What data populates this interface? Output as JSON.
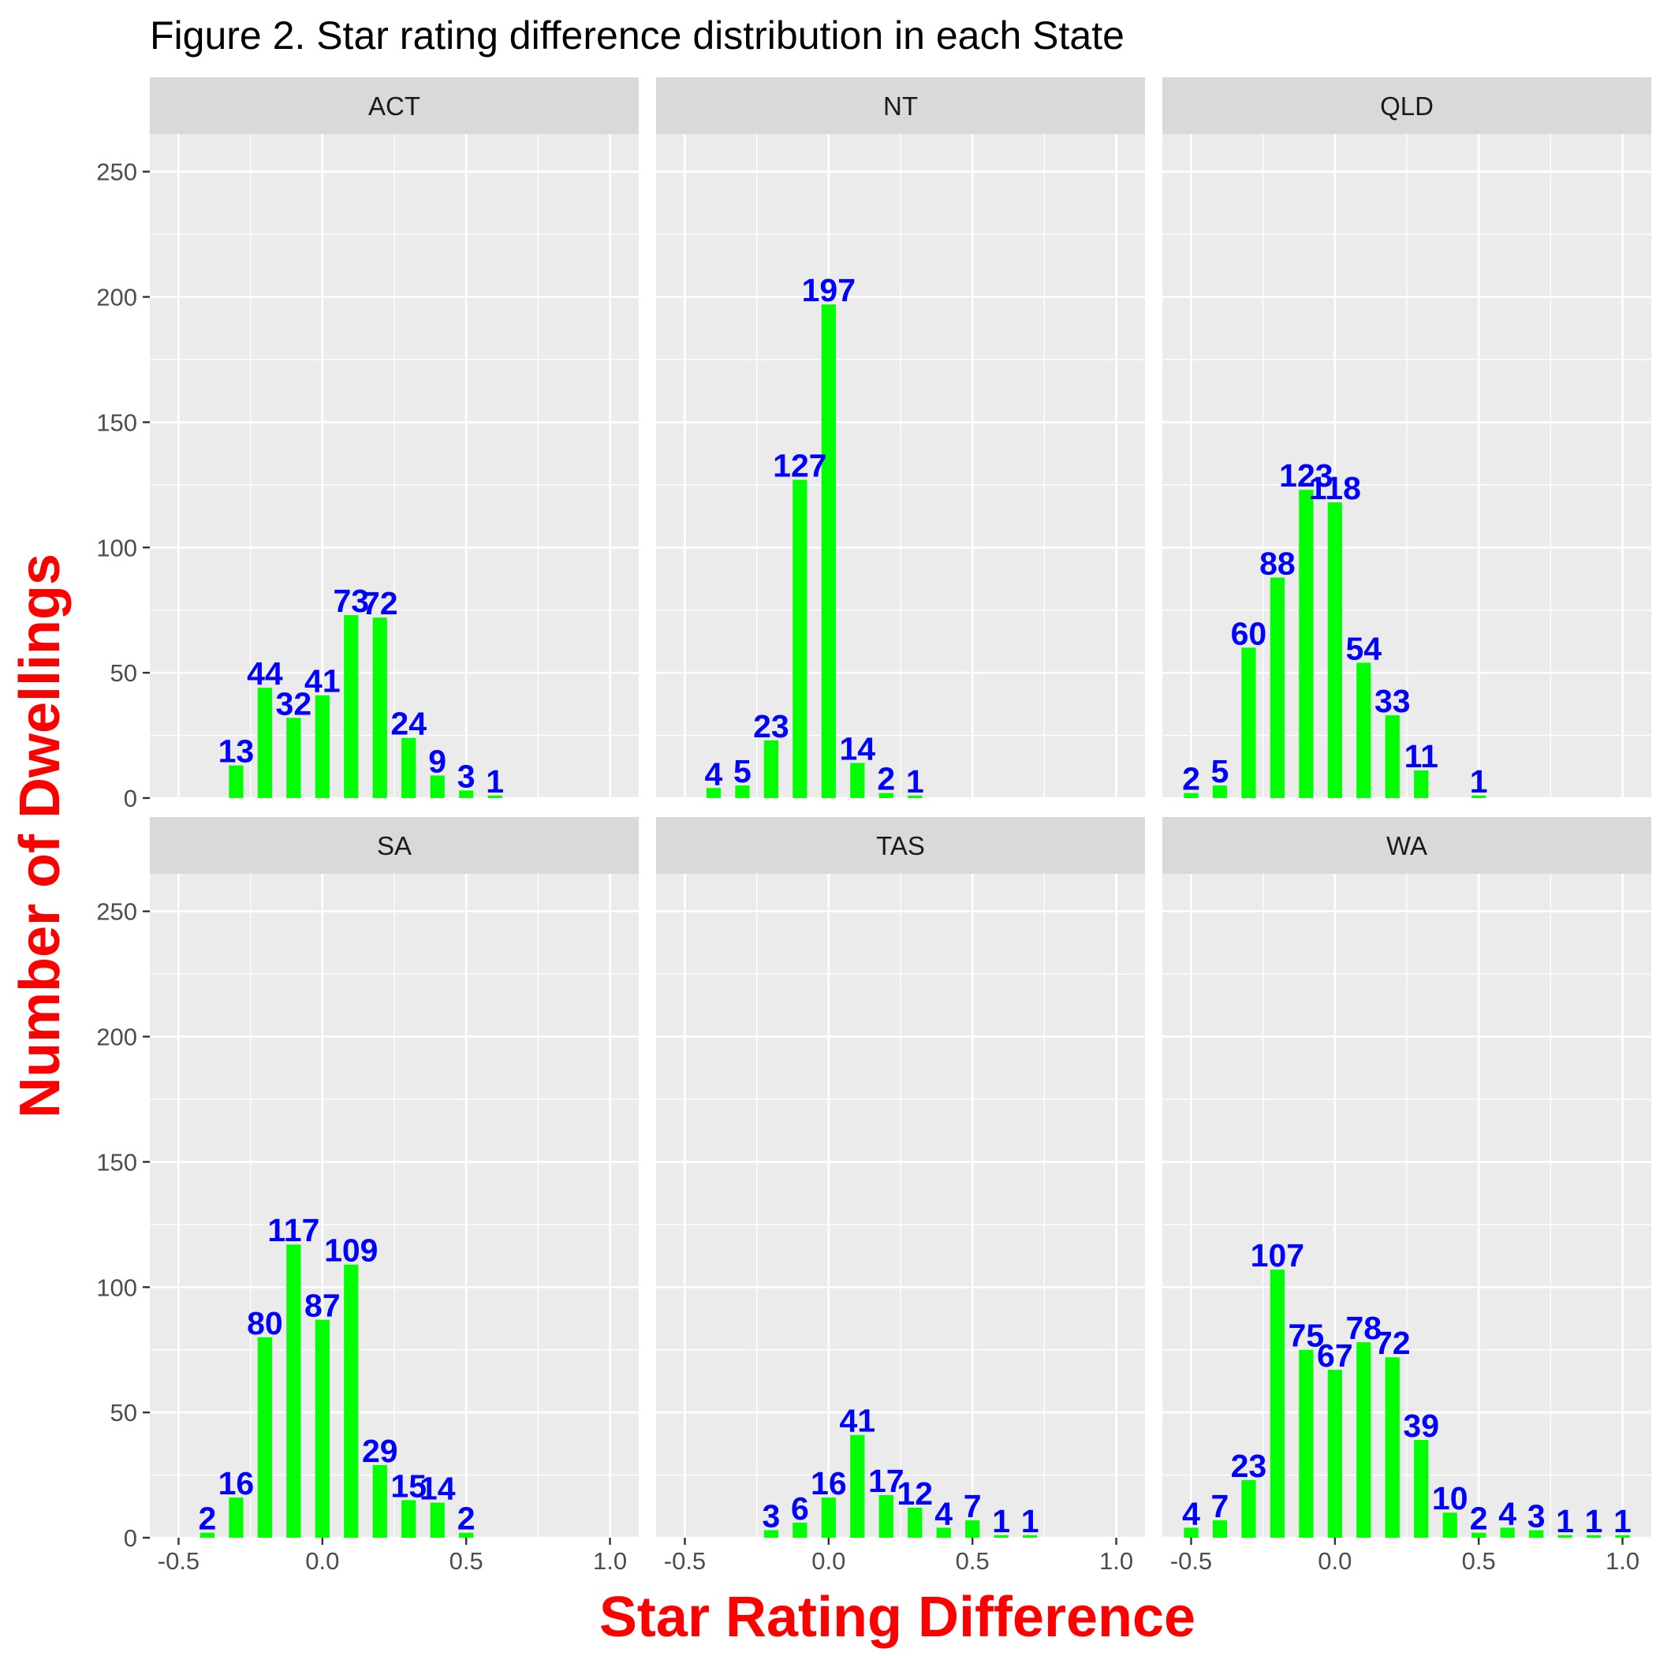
{
  "chart_data": {
    "type": "bar",
    "title": "Figure 2. Star rating difference distribution in each State",
    "xlabel": "Star Rating Difference",
    "ylabel": "Number of Dwellings",
    "xlim": [
      -0.6,
      1.1
    ],
    "ylim": [
      0,
      265
    ],
    "x_ticks": [
      -0.5,
      0.0,
      0.5,
      1.0
    ],
    "x_tick_labels": [
      "-0.5",
      "0.0",
      "0.5",
      "1.0"
    ],
    "y_ticks": [
      0,
      50,
      100,
      150,
      200,
      250
    ],
    "y_tick_labels": [
      "0",
      "50",
      "100",
      "150",
      "200",
      "250"
    ],
    "grid": true,
    "bar_color": "#00ff00",
    "label_color": "#0000ff",
    "axis_title_color": "#ff0000",
    "panel_background": "#ebebeb",
    "strip_background": "#d9d9d9",
    "panels": [
      {
        "name": "ACT",
        "x": [
          -0.3,
          -0.2,
          -0.1,
          0.0,
          0.1,
          0.2,
          0.3,
          0.4,
          0.5,
          0.6
        ],
        "values": [
          13,
          44,
          32,
          41,
          73,
          72,
          24,
          9,
          3,
          1
        ]
      },
      {
        "name": "NT",
        "x": [
          -0.4,
          -0.3,
          -0.2,
          -0.1,
          0.0,
          0.1,
          0.2,
          0.3
        ],
        "values": [
          4,
          5,
          23,
          127,
          197,
          14,
          2,
          1
        ]
      },
      {
        "name": "QLD",
        "x": [
          -0.5,
          -0.4,
          -0.3,
          -0.2,
          -0.1,
          0.0,
          0.1,
          0.2,
          0.3,
          0.5
        ],
        "values": [
          2,
          5,
          60,
          88,
          123,
          118,
          54,
          33,
          11,
          1
        ]
      },
      {
        "name": "SA",
        "x": [
          -0.4,
          -0.3,
          -0.2,
          -0.1,
          0.0,
          0.1,
          0.2,
          0.3,
          0.4,
          0.5
        ],
        "values": [
          2,
          16,
          80,
          117,
          87,
          109,
          29,
          15,
          14,
          2
        ]
      },
      {
        "name": "TAS",
        "x": [
          -0.2,
          -0.1,
          0.0,
          0.1,
          0.2,
          0.3,
          0.4,
          0.5,
          0.6,
          0.7
        ],
        "values": [
          3,
          6,
          16,
          41,
          17,
          12,
          4,
          7,
          1,
          1
        ]
      },
      {
        "name": "WA",
        "x": [
          -0.5,
          -0.4,
          -0.3,
          -0.2,
          -0.1,
          0.0,
          0.1,
          0.2,
          0.3,
          0.4,
          0.5,
          0.6,
          0.7,
          0.8,
          0.9,
          1.0
        ],
        "values": [
          4,
          7,
          23,
          107,
          75,
          67,
          78,
          72,
          39,
          10,
          2,
          4,
          3,
          1,
          1,
          1
        ]
      }
    ]
  }
}
